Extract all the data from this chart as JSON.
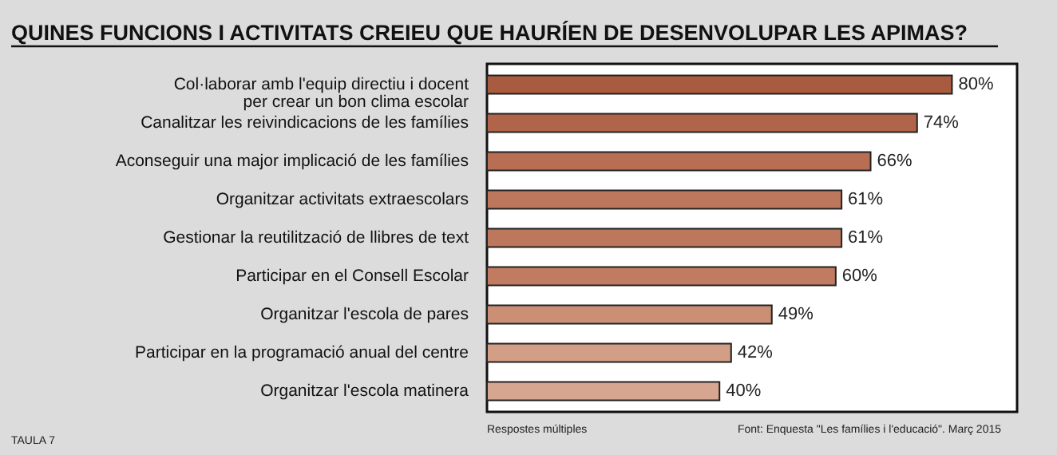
{
  "chart_data": {
    "type": "bar",
    "orientation": "horizontal",
    "title": "QUINES FUNCIONS I ACTIVITATS CREIEU QUE HAURÍEN DE DESENVOLUPAR LES APIMAS?",
    "categories": [
      "Col·laborar amb l'equip directiu i docent\nper crear un bon clima escolar",
      "Canalitzar les reivindicacions de les famílies",
      "Aconseguir una major implicació de les famílies",
      "Organitzar activitats extraescolars",
      "Gestionar la reutilització de llibres de text",
      "Participar en el Consell Escolar",
      "Organitzar l'escola de pares",
      "Participar en la programació anual del centre",
      "Organitzar l'escola matinera"
    ],
    "values": [
      80,
      74,
      66,
      61,
      61,
      60,
      49,
      42,
      40
    ],
    "value_labels": [
      "80%",
      "74%",
      "66%",
      "61%",
      "61%",
      "60%",
      "49%",
      "42%",
      "40%"
    ],
    "colors": [
      "#a95b40",
      "#b06449",
      "#b86e53",
      "#bd775c",
      "#bd775c",
      "#c07b60",
      "#cb8f75",
      "#d29e86",
      "#d6a690"
    ],
    "annotations": [
      "TAULA 7",
      "Respostes múltiples",
      "Font: Enquesta \"Les famílies i l'educació\". Març 2015"
    ]
  }
}
